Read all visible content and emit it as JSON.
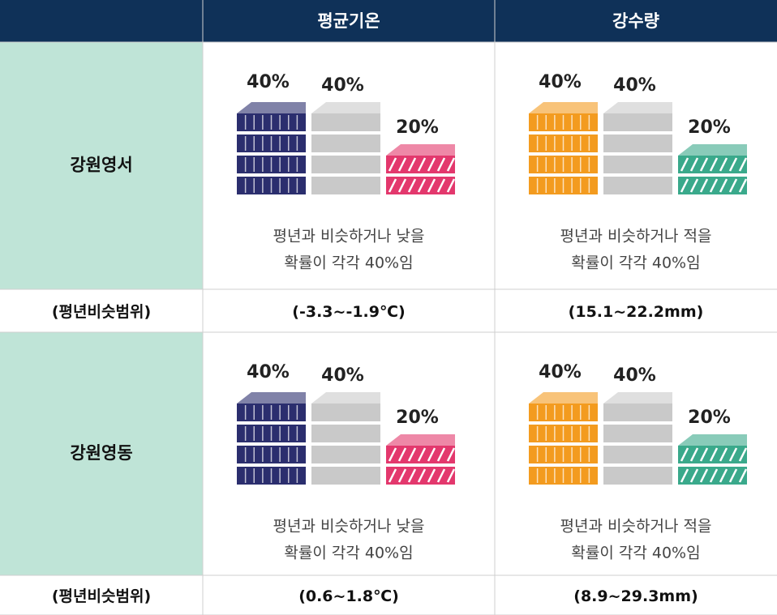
{
  "table": {
    "columns": [
      "평균기온",
      "강수량"
    ],
    "rows": [
      {
        "region": "강원영서",
        "cells": [
          {
            "values": [
              40,
              40,
              20
            ],
            "value_labels": [
              "40%",
              "40%",
              "20%"
            ],
            "colors": [
              "#2b2e6e",
              "#c9c9c9",
              "#e3386d"
            ],
            "caption": [
              "평년과 비슷하거나 낮을",
              "확률이 각각 40%임"
            ]
          },
          {
            "values": [
              40,
              40,
              20
            ],
            "value_labels": [
              "40%",
              "40%",
              "20%"
            ],
            "colors": [
              "#f39b1f",
              "#c9c9c9",
              "#3aa98b"
            ],
            "caption": [
              "평년과 비슷하거나 적을",
              "확률이 각각 40%임"
            ]
          }
        ],
        "range_label": "(평년비슷범위)",
        "ranges": [
          "(-3.3~-1.9℃)",
          "(15.1~22.2mm)"
        ]
      },
      {
        "region": "강원영동",
        "cells": [
          {
            "values": [
              40,
              40,
              20
            ],
            "value_labels": [
              "40%",
              "40%",
              "20%"
            ],
            "colors": [
              "#2b2e6e",
              "#c9c9c9",
              "#e3386d"
            ],
            "caption": [
              "평년과 비슷하거나 낮을",
              "확률이 각각 40%임"
            ]
          },
          {
            "values": [
              40,
              40,
              20
            ],
            "value_labels": [
              "40%",
              "40%",
              "20%"
            ],
            "colors": [
              "#f39b1f",
              "#c9c9c9",
              "#3aa98b"
            ],
            "caption": [
              "평년과 비슷하거나 적을",
              "확률이 각각 40%임"
            ]
          }
        ],
        "range_label": "(평년비슷범위)",
        "ranges": [
          "(0.6~1.8℃)",
          "(8.9~29.3mm)"
        ]
      }
    ]
  }
}
